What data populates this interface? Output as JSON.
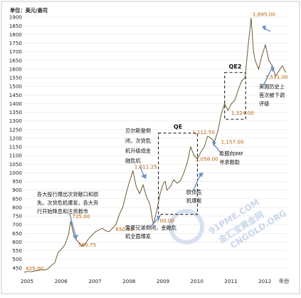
{
  "chart_data": {
    "type": "line",
    "title": "",
    "ylabel": "单位：美元/盎司",
    "xlabel": "年份",
    "ylim": [
      400,
      1950
    ],
    "yticks": [
      450,
      500,
      550,
      600,
      650,
      700,
      750,
      800,
      850,
      900,
      950,
      1000,
      1050,
      1100,
      1150,
      1200,
      1250,
      1300,
      1350,
      1400,
      1450,
      1500,
      1550,
      1600,
      1650,
      1700,
      1750,
      1800,
      1850,
      1900
    ],
    "xlim": [
      2005.0,
      2012.75
    ],
    "xticks": [
      "2005",
      "2006",
      "2007",
      "2008",
      "2009",
      "2010",
      "2011",
      "2012"
    ],
    "series": [
      {
        "x": [
          2005.0,
          2005.1,
          2005.2,
          2005.3,
          2005.4,
          2005.5,
          2005.6,
          2005.7,
          2005.8,
          2005.9,
          2006.0,
          2006.1,
          2006.2,
          2006.3,
          2006.37,
          2006.45,
          2006.5,
          2006.6,
          2006.7,
          2006.8,
          2006.9,
          2007.0,
          2007.1,
          2007.2,
          2007.3,
          2007.4,
          2007.5,
          2007.6,
          2007.7,
          2007.8,
          2007.9,
          2008.0,
          2008.1,
          2008.2,
          2008.3,
          2008.4,
          2008.5,
          2008.6,
          2008.7,
          2008.75,
          2008.8,
          2008.9,
          2009.0,
          2009.1,
          2009.15,
          2009.2,
          2009.3,
          2009.4,
          2009.5,
          2009.6,
          2009.7,
          2009.8,
          2009.9,
          2010.0,
          2010.1,
          2010.2,
          2010.3,
          2010.4,
          2010.5,
          2010.6,
          2010.7,
          2010.8,
          2010.9,
          2011.0,
          2011.1,
          2011.2,
          2011.3,
          2011.4,
          2011.5,
          2011.6,
          2011.68,
          2011.75,
          2011.8,
          2011.9,
          2012.0,
          2012.1,
          2012.2,
          2012.3,
          2012.4,
          2012.5,
          2012.6,
          2012.7
        ],
        "y": [
          425,
          430,
          428,
          432,
          435,
          440,
          438,
          445,
          465,
          480,
          540,
          560,
          585,
          640,
          720,
          650,
          620,
          600,
          575,
          590,
          620,
          640,
          660,
          670,
          680,
          665,
          660,
          680,
          700,
          760,
          800,
          880,
          950,
          1011,
          920,
          880,
          930,
          860,
          820,
          760,
          700,
          780,
          880,
          940,
          950,
          900,
          920,
          960,
          940,
          955,
          1000,
          1060,
          1150,
          1100,
          1080,
          1120,
          1150,
          1212,
          1200,
          1180,
          1240,
          1340,
          1400,
          1360,
          1400,
          1420,
          1480,
          1530,
          1550,
          1750,
          1895,
          1700,
          1650,
          1600,
          1680,
          1740,
          1650,
          1620,
          1560,
          1590,
          1620,
          1580
        ]
      }
    ],
    "value_labels": [
      {
        "x": 2005.0,
        "y": 425,
        "text": "425.00"
      },
      {
        "x": 2006.37,
        "y": 725,
        "text": "725.00"
      },
      {
        "x": 2006.55,
        "y": 560.75,
        "text": "560.75"
      },
      {
        "x": 2007.65,
        "y": 650.5,
        "text": "650.50"
      },
      {
        "x": 2008.2,
        "y": 1011.25,
        "text": "1,011.25"
      },
      {
        "x": 2008.85,
        "y": 700,
        "text": "700.00"
      },
      {
        "x": 2009.9,
        "y": 1212.5,
        "text": "1,212.50"
      },
      {
        "x": 2010.0,
        "y": 1058,
        "text": "1,058.00"
      },
      {
        "x": 2010.75,
        "y": 1157,
        "text": "1,157.00"
      },
      {
        "x": 2011.05,
        "y": 1324,
        "text": "1,324.00"
      },
      {
        "x": 2011.68,
        "y": 1895,
        "text": "1,895.00"
      },
      {
        "x": 2012.05,
        "y": 1531,
        "text": "1,531.00"
      }
    ],
    "annotations": [
      {
        "id": "ann-2006",
        "lines": [
          "各大投行爆出次贷敞口和损",
          "失。次贷危机爆发，各大央",
          "行开始降息和注资救市"
        ]
      },
      {
        "id": "ann-bear",
        "lines": [
          "贝尔斯登倒",
          "闭，次贷危",
          "机升级成金",
          "融危机"
        ]
      },
      {
        "id": "ann-lehman",
        "lines": [
          "雷曼兄弟倒闭，金融危",
          "机全面爆发"
        ]
      },
      {
        "id": "ann-euro",
        "lines": [
          "欧债危",
          "机爆发"
        ]
      },
      {
        "id": "ann-greece",
        "lines": [
          "希腊向IMF",
          "寻求救助"
        ]
      },
      {
        "id": "ann-usdown",
        "lines": [
          "美国历史上",
          "首次被下调",
          "评级"
        ]
      }
    ],
    "regions": [
      {
        "label": "QE",
        "x0": 2008.95,
        "x1": 2010.1,
        "y0": 760,
        "y1": 1230
      },
      {
        "label": "QE2",
        "x0": 2010.9,
        "x1": 2011.52,
        "y0": 1310,
        "y1": 1580
      }
    ],
    "grid": true,
    "watermark_text": "CNGOLD.ORG",
    "watermark_brand": "金汇宝黄金网",
    "watermark_url": "91PME.COM",
    "colors": {
      "line": "#5a4a20",
      "value_label": "#b45f06",
      "arrow": "#6a8fc8"
    }
  }
}
